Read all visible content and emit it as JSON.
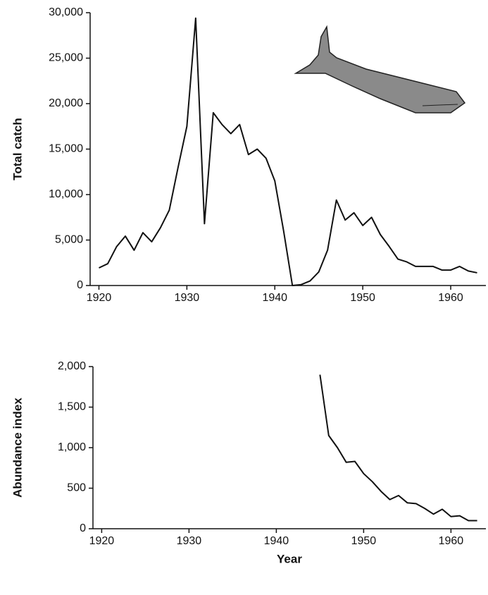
{
  "chart_data": [
    {
      "type": "line",
      "ylabel": "Total catch",
      "color": "#111111",
      "x": [
        1920,
        1921,
        1922,
        1923,
        1924,
        1925,
        1926,
        1927,
        1928,
        1929,
        1930,
        1931,
        1932,
        1933,
        1934,
        1935,
        1936,
        1937,
        1938,
        1939,
        1940,
        1941,
        1942,
        1943,
        1944,
        1945,
        1946,
        1947,
        1948,
        1949,
        1950,
        1951,
        1952,
        1953,
        1954,
        1955,
        1956,
        1957,
        1958,
        1959,
        1960,
        1961,
        1962,
        1963
      ],
      "values": [
        1940,
        2400,
        4260,
        5430,
        3880,
        5810,
        4810,
        6360,
        8290,
        13000,
        17500,
        29400,
        6800,
        19000,
        17700,
        16700,
        17700,
        14400,
        15000,
        14000,
        11500,
        6000,
        0,
        100,
        500,
        1500,
        3900,
        9400,
        7200,
        8000,
        6600,
        7500,
        5600,
        4300,
        2900,
        2600,
        2100,
        2100,
        2100,
        1700,
        1700,
        2100,
        1600,
        1400
      ],
      "xlim": [
        1919,
        1964
      ],
      "xticks": [
        1920,
        1930,
        1940,
        1950,
        1960
      ],
      "ylim": [
        0,
        30000
      ],
      "yticks": [
        0,
        {
          "value": 5000,
          "label": "5,000"
        },
        {
          "value": 10000,
          "label": "10,000"
        },
        {
          "value": 15000,
          "label": "15,000"
        },
        {
          "value": 20000,
          "label": "20,000"
        },
        {
          "value": 25000,
          "label": "25,000"
        },
        {
          "value": 30000,
          "label": "30,000"
        }
      ]
    },
    {
      "type": "line",
      "ylabel": "Abundance index",
      "xlabel": "Year",
      "color": "#111111",
      "x": [
        1945,
        1946,
        1947,
        1948,
        1949,
        1950,
        1951,
        1952,
        1953,
        1954,
        1955,
        1956,
        1957,
        1958,
        1959,
        1960,
        1961,
        1962,
        1963
      ],
      "values": [
        1900,
        1150,
        1000,
        820,
        830,
        680,
        580,
        460,
        360,
        410,
        320,
        310,
        250,
        180,
        240,
        150,
        160,
        100,
        100
      ],
      "xlim": [
        1919,
        1964
      ],
      "xticks": [
        1920,
        1930,
        1940,
        1950,
        1960
      ],
      "ylim": [
        0,
        2000
      ],
      "yticks": [
        0,
        500,
        {
          "value": 1000,
          "label": "1,000"
        },
        {
          "value": 1500,
          "label": "1,500"
        },
        {
          "value": 2000,
          "label": "2,000"
        }
      ]
    }
  ]
}
